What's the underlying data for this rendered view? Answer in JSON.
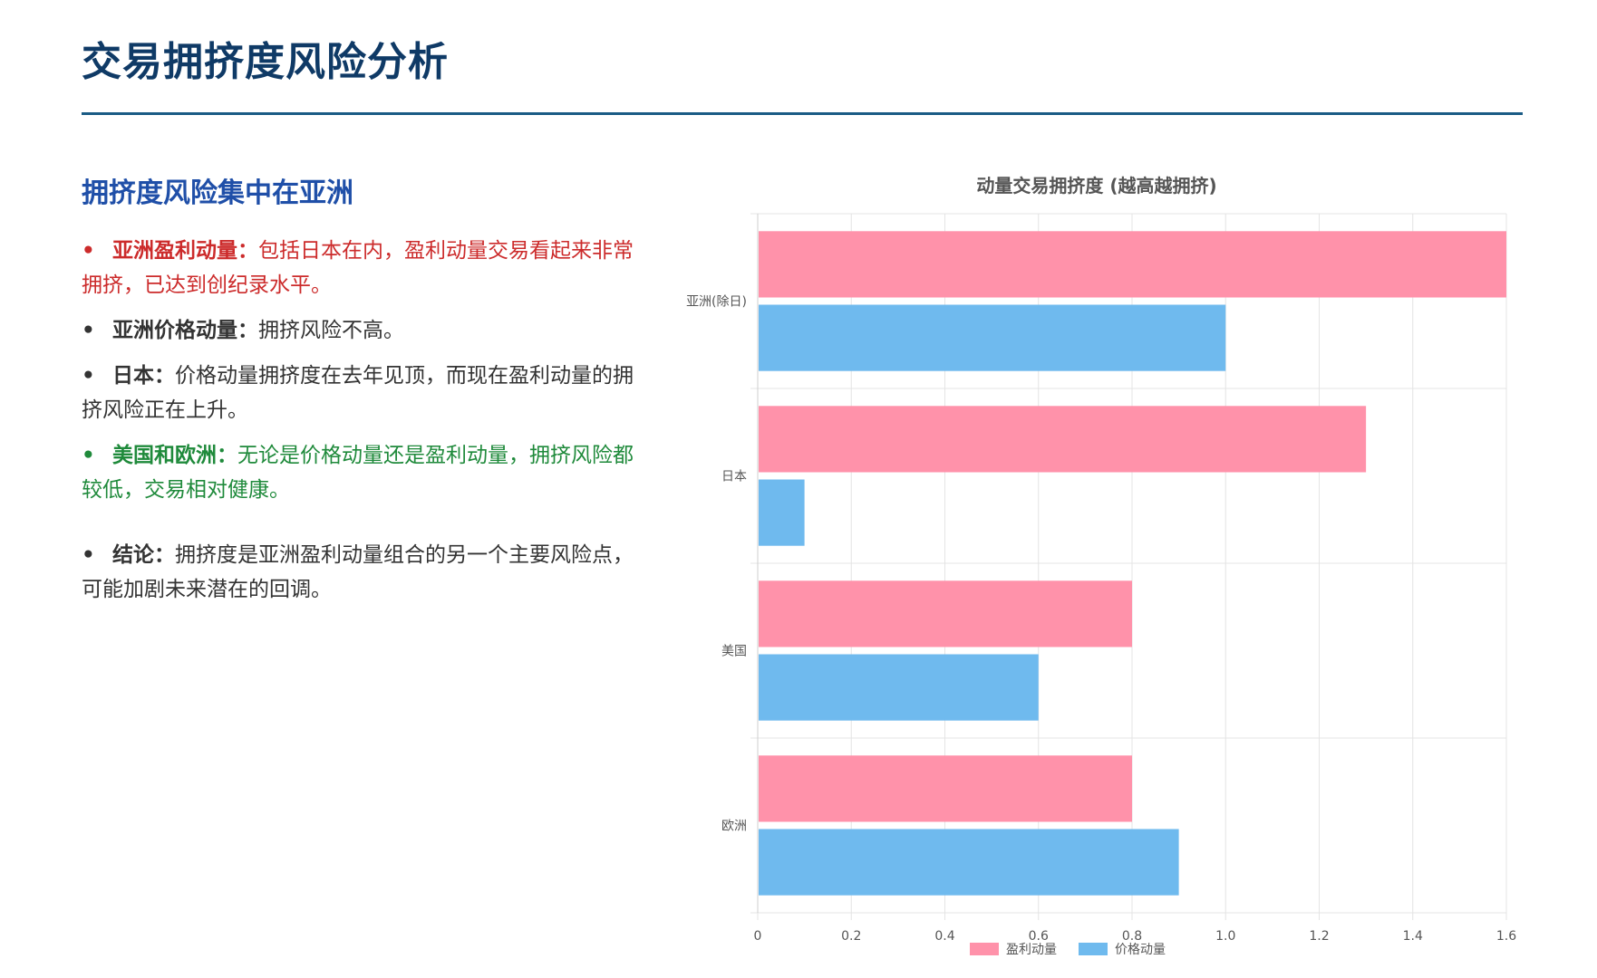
{
  "page": {
    "title": "交易拥挤度风险分析"
  },
  "left": {
    "heading": "拥挤度风险集中在亚洲",
    "bullets": [
      {
        "key": "亚洲盈利动量：",
        "text": "包括日本在内，盈利动量交易看起来非常拥挤，已达到创纪录水平。",
        "style": "red"
      },
      {
        "key": "亚洲价格动量：",
        "text": "拥挤风险不高。",
        "style": "normal"
      },
      {
        "key": "日本：",
        "text": "价格动量拥挤度在去年见顶，而现在盈利动量的拥挤风险正在上升。",
        "style": "normal"
      },
      {
        "key": "美国和欧洲：",
        "text": "无论是价格动量还是盈利动量，拥挤风险都较低，交易相对健康。",
        "style": "green"
      },
      {
        "key": "结论：",
        "text": "拥挤度是亚洲盈利动量组合的另一个主要风险点，可能加剧未来潜在的回调。",
        "style": "gap"
      }
    ]
  },
  "chart_data": {
    "type": "bar",
    "orientation": "horizontal",
    "title": "动量交易拥挤度 (越高越拥挤)",
    "categories": [
      "亚洲(除日)",
      "日本",
      "美国",
      "欧洲"
    ],
    "series": [
      {
        "name": "盈利动量",
        "values": [
          1.6,
          1.3,
          0.8,
          0.8
        ],
        "color": "#ff92aa"
      },
      {
        "name": "价格动量",
        "values": [
          1.0,
          0.1,
          0.6,
          0.9
        ],
        "color": "#6fbaee"
      }
    ],
    "xlim": [
      0,
      1.6
    ],
    "xticks": [
      "0",
      "0.2",
      "0.4",
      "0.6",
      "0.8",
      "1.0",
      "1.2",
      "1.4",
      "1.6"
    ],
    "grid": true,
    "legend": "bottom-center"
  }
}
